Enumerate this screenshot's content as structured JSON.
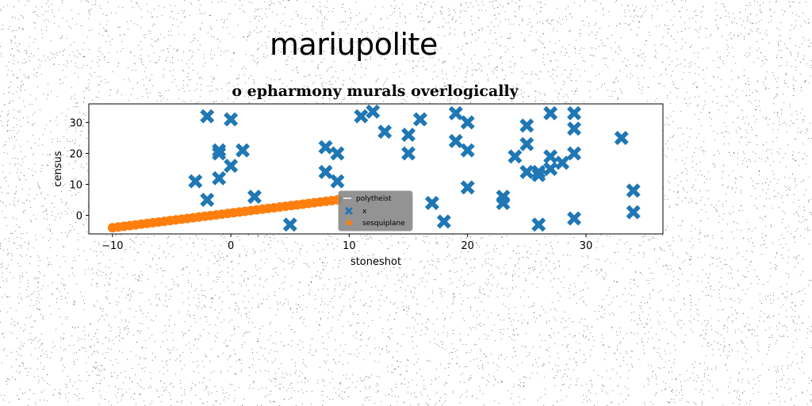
{
  "suptitle": "mariupolite",
  "chart_data": {
    "type": "scatter",
    "title": "o epharmony murals overlogically",
    "xlabel": "stoneshot",
    "ylabel": "census",
    "xlim": [
      -12,
      36.5
    ],
    "ylim": [
      -6,
      36
    ],
    "xticks": [
      -10,
      0,
      10,
      20,
      30
    ],
    "yticks": [
      0,
      10,
      20,
      30
    ],
    "grid": false,
    "legend_position": "center",
    "series": [
      {
        "name": "polytheist",
        "type": "line",
        "color": "#ffffff",
        "x": [
          -10,
          9
        ],
        "y": [
          -4,
          5
        ]
      },
      {
        "name": "x",
        "type": "scatter",
        "marker": "X",
        "color": "#1f77b4",
        "points": [
          [
            -3,
            11
          ],
          [
            -2,
            32
          ],
          [
            -2,
            5
          ],
          [
            -1,
            21
          ],
          [
            -1,
            20
          ],
          [
            -1,
            12
          ],
          [
            0,
            31
          ],
          [
            0,
            16
          ],
          [
            1,
            21
          ],
          [
            2,
            6
          ],
          [
            5,
            -3
          ],
          [
            8,
            22
          ],
          [
            8,
            14
          ],
          [
            9,
            20
          ],
          [
            9,
            11
          ],
          [
            11,
            32
          ],
          [
            12,
            33.5
          ],
          [
            13,
            27
          ],
          [
            15,
            26
          ],
          [
            15,
            20
          ],
          [
            16,
            31
          ],
          [
            17,
            4
          ],
          [
            18,
            -2
          ],
          [
            19,
            33
          ],
          [
            19,
            24
          ],
          [
            20,
            30
          ],
          [
            20,
            21
          ],
          [
            20,
            9
          ],
          [
            23,
            6
          ],
          [
            23,
            4
          ],
          [
            24,
            19
          ],
          [
            25,
            29
          ],
          [
            25,
            23
          ],
          [
            25,
            14
          ],
          [
            26,
            14
          ],
          [
            26,
            13
          ],
          [
            26,
            -3
          ],
          [
            27,
            33
          ],
          [
            27,
            19
          ],
          [
            27,
            15
          ],
          [
            28,
            17
          ],
          [
            29,
            33
          ],
          [
            29,
            28
          ],
          [
            29,
            20
          ],
          [
            29,
            -1
          ],
          [
            33,
            25
          ],
          [
            34,
            8
          ],
          [
            34,
            1
          ]
        ]
      },
      {
        "name": "sesquiplane",
        "type": "scatter",
        "marker": "o",
        "color": "#ff7f0e",
        "x_start": -10,
        "x_end": 9,
        "count": 40,
        "y_start": -4,
        "y_end": 5
      }
    ]
  },
  "colors": {
    "background": "#ffffff",
    "axes": "#000000",
    "legend_bg": "#808080"
  }
}
